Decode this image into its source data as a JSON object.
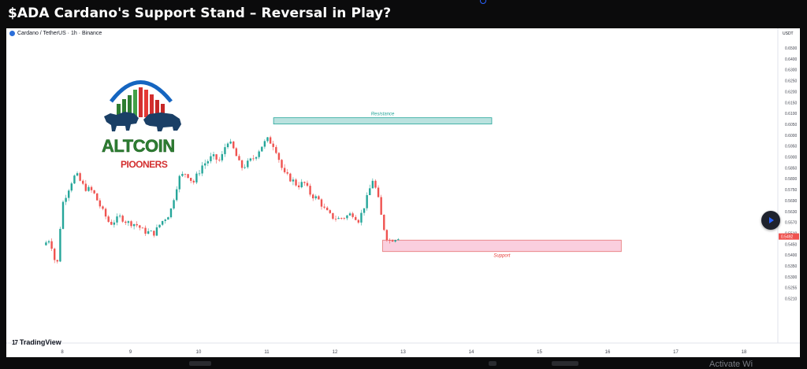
{
  "page": {
    "title": "$ADA Cardano's Support Stand – Reversal in Play?"
  },
  "chart_header": {
    "symbol": "Cardano / TetherUS · 1h · Binance",
    "currency": "USDT"
  },
  "branding": {
    "logo_line1": "ALTCOIN",
    "logo_line2": "PIOONERS",
    "tradingview": "TradingView",
    "activate_fragment": "Activate Wi"
  },
  "colors": {
    "up": "#26a69a",
    "down": "#ef5350",
    "resistance_fill": "#b2dfdb",
    "resistance_border": "#26a69a",
    "support_fill": "#f8bbd0",
    "support_border": "#e57373",
    "current_price_bg": "#ef5350"
  },
  "chart_data": {
    "type": "candlestick",
    "y_axis_ticks": [
      "0.6500",
      "0.6400",
      "0.6300",
      "0.6250",
      "0.6200",
      "0.6150",
      "0.6100",
      "0.6050",
      "0.6000",
      "0.5950",
      "0.5900",
      "0.5850",
      "0.5800",
      "0.5750",
      "0.5690",
      "0.5630",
      "0.5570",
      "0.5510",
      "0.5450",
      "0.5400",
      "0.5350",
      "0.5300",
      "0.5255",
      "0.5210"
    ],
    "x_axis_ticks": [
      "8",
      "9",
      "10",
      "11",
      "12",
      "13",
      "14",
      "15",
      "16",
      "17",
      "18"
    ],
    "current_price": "0.5492",
    "zones": [
      {
        "label": "Resistance",
        "top": 0.608,
        "bottom": 0.6055,
        "from_day": 11.1,
        "to_day": 14.3
      },
      {
        "label": "Support",
        "top": 0.5472,
        "bottom": 0.5416,
        "from_day": 12.7,
        "to_day": 16.2
      }
    ],
    "close_path": [
      [
        7.72,
        0.5445
      ],
      [
        7.82,
        0.548
      ],
      [
        7.92,
        0.533
      ],
      [
        8.0,
        0.567
      ],
      [
        8.12,
        0.578
      ],
      [
        8.2,
        0.582
      ],
      [
        8.32,
        0.576
      ],
      [
        8.45,
        0.574
      ],
      [
        8.58,
        0.564
      ],
      [
        8.7,
        0.556
      ],
      [
        8.85,
        0.56
      ],
      [
        8.95,
        0.557
      ],
      [
        9.08,
        0.556
      ],
      [
        9.2,
        0.552
      ],
      [
        9.35,
        0.551
      ],
      [
        9.45,
        0.557
      ],
      [
        9.58,
        0.562
      ],
      [
        9.7,
        0.58
      ],
      [
        9.82,
        0.583
      ],
      [
        9.92,
        0.578
      ],
      [
        10.05,
        0.586
      ],
      [
        10.2,
        0.59
      ],
      [
        10.32,
        0.588
      ],
      [
        10.42,
        0.598
      ],
      [
        10.52,
        0.593
      ],
      [
        10.62,
        0.585
      ],
      [
        10.72,
        0.587
      ],
      [
        10.82,
        0.59
      ],
      [
        10.92,
        0.595
      ],
      [
        11.02,
        0.598
      ],
      [
        11.12,
        0.595
      ],
      [
        11.25,
        0.582
      ],
      [
        11.35,
        0.58
      ],
      [
        11.45,
        0.577
      ],
      [
        11.55,
        0.578
      ],
      [
        11.65,
        0.572
      ],
      [
        11.75,
        0.57
      ],
      [
        11.85,
        0.564
      ],
      [
        11.95,
        0.56
      ],
      [
        12.05,
        0.559
      ],
      [
        12.15,
        0.56
      ],
      [
        12.25,
        0.562
      ],
      [
        12.35,
        0.558
      ],
      [
        12.45,
        0.568
      ],
      [
        12.55,
        0.58
      ],
      [
        12.62,
        0.573
      ],
      [
        12.7,
        0.556
      ],
      [
        12.78,
        0.5465
      ],
      [
        12.86,
        0.548
      ],
      [
        12.95,
        0.5492
      ]
    ]
  }
}
